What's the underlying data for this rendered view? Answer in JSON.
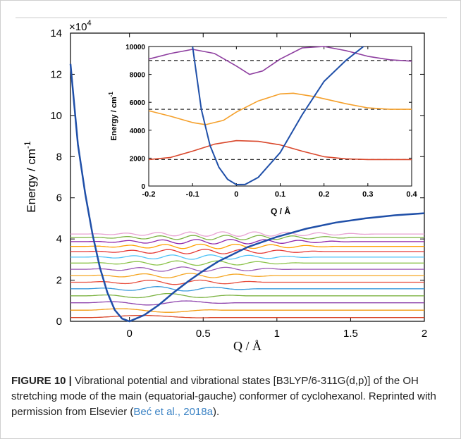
{
  "chart_data": [
    {
      "type": "line",
      "ylabel": "Energy / cm",
      "ylabel_sup": "-1",
      "xlabel": "Q / Å",
      "y_multiplier": "×10",
      "y_multiplier_exp": "4",
      "xlim": [
        -0.4,
        2.0
      ],
      "ylim": [
        0,
        14
      ],
      "x_ticks": [
        0,
        0.5,
        1,
        1.5,
        2
      ],
      "x_tick_labels": [
        "0",
        "0.5",
        "1",
        "1.5",
        "2"
      ],
      "y_ticks": [
        0,
        2,
        4,
        6,
        8,
        10,
        12,
        14
      ],
      "y_tick_labels": [
        "0",
        "2",
        "4",
        "6",
        "8",
        "10",
        "12",
        "14"
      ],
      "potential_points": [
        [
          -0.4,
          12.5
        ],
        [
          -0.35,
          8.6
        ],
        [
          -0.3,
          6.2
        ],
        [
          -0.25,
          4.2
        ],
        [
          -0.2,
          2.6
        ],
        [
          -0.15,
          1.4
        ],
        [
          -0.1,
          0.55
        ],
        [
          -0.05,
          0.13
        ],
        [
          0,
          0
        ],
        [
          0.1,
          0.3
        ],
        [
          0.2,
          0.8
        ],
        [
          0.3,
          1.4
        ],
        [
          0.4,
          1.95
        ],
        [
          0.5,
          2.45
        ],
        [
          0.6,
          2.9
        ],
        [
          0.8,
          3.6
        ],
        [
          1.0,
          4.1
        ],
        [
          1.2,
          4.5
        ],
        [
          1.4,
          4.8
        ],
        [
          1.6,
          5.0
        ],
        [
          1.8,
          5.15
        ],
        [
          2.0,
          5.25
        ]
      ],
      "vibrational_levels": [
        0.18,
        0.54,
        0.9,
        1.24,
        1.58,
        1.9,
        2.22,
        2.53,
        2.83,
        3.12,
        3.39,
        3.64,
        3.87,
        4.07,
        4.24
      ],
      "level_colors": [
        "#d9472b",
        "#f39c12",
        "#8e44ad",
        "#7cb342",
        "#3498db",
        "#e74c3c",
        "#f5a623",
        "#9b59b6",
        "#8bc34a",
        "#4fc3f7",
        "#e53935",
        "#ffa000",
        "#8e24aa",
        "#7cb342",
        "#e8a2d2"
      ],
      "potential_color": "#1f4fa8"
    },
    {
      "type": "line",
      "ylabel": "Energy / cm",
      "ylabel_sup": "-1",
      "xlabel": "Q / Å",
      "xlim": [
        -0.2,
        0.4
      ],
      "ylim": [
        0,
        10000
      ],
      "x_ticks": [
        -0.2,
        -0.1,
        0,
        0.1,
        0.2,
        0.3,
        0.4
      ],
      "x_tick_labels": [
        "-0.2",
        "-0.1",
        "0",
        "0.1",
        "0.2",
        "0.3",
        "0.4"
      ],
      "y_ticks": [
        0,
        2000,
        4000,
        6000,
        8000,
        10000
      ],
      "y_tick_labels": [
        "0",
        "2000",
        "4000",
        "6000",
        "8000",
        "10000"
      ],
      "potential_points": [
        [
          -0.1,
          10500
        ],
        [
          -0.08,
          5500
        ],
        [
          -0.06,
          2900
        ],
        [
          -0.04,
          1350
        ],
        [
          -0.02,
          480
        ],
        [
          0,
          100
        ],
        [
          0.02,
          110
        ],
        [
          0.05,
          620
        ],
        [
          0.1,
          2400
        ],
        [
          0.15,
          5100
        ],
        [
          0.2,
          7500
        ],
        [
          0.25,
          9000
        ],
        [
          0.29,
          10500
        ]
      ],
      "levels": [
        1900,
        5500,
        9000
      ],
      "wavefunctions": [
        {
          "level": 1900,
          "color": "#d9472b",
          "points": [
            [
              -0.2,
              1900
            ],
            [
              -0.15,
              2050
            ],
            [
              -0.1,
              2500
            ],
            [
              -0.05,
              3000
            ],
            [
              0,
              3250
            ],
            [
              0.05,
              3200
            ],
            [
              0.1,
              2950
            ],
            [
              0.15,
              2500
            ],
            [
              0.2,
              2100
            ],
            [
              0.25,
              1950
            ],
            [
              0.3,
              1900
            ],
            [
              0.4,
              1900
            ]
          ]
        },
        {
          "level": 5500,
          "color": "#f5a02b",
          "points": [
            [
              -0.2,
              5400
            ],
            [
              -0.15,
              5000
            ],
            [
              -0.1,
              4550
            ],
            [
              -0.07,
              4400
            ],
            [
              -0.03,
              4700
            ],
            [
              0,
              5300
            ],
            [
              0.05,
              6100
            ],
            [
              0.1,
              6600
            ],
            [
              0.13,
              6650
            ],
            [
              0.18,
              6400
            ],
            [
              0.25,
              5900
            ],
            [
              0.3,
              5600
            ],
            [
              0.35,
              5500
            ],
            [
              0.4,
              5500
            ]
          ]
        },
        {
          "level": 9000,
          "color": "#8e3fa0",
          "points": [
            [
              -0.2,
              9100
            ],
            [
              -0.15,
              9500
            ],
            [
              -0.1,
              9800
            ],
            [
              -0.05,
              9500
            ],
            [
              0,
              8600
            ],
            [
              0.03,
              8000
            ],
            [
              0.06,
              8250
            ],
            [
              0.1,
              9100
            ],
            [
              0.15,
              9900
            ],
            [
              0.2,
              10000
            ],
            [
              0.25,
              9700
            ],
            [
              0.3,
              9300
            ],
            [
              0.35,
              9050
            ],
            [
              0.4,
              8950
            ]
          ]
        }
      ],
      "potential_color": "#1f4fa8",
      "level_line_color": "#333333"
    }
  ],
  "caption": {
    "label": "FIGURE 10 |",
    "text": " Vibrational potential and vibrational states [B3LYP/6-311G(d,p)] of the OH stretching mode of the main (equatorial-gauche) conformer of cyclohexanol. Reprinted with permission from Elsevier (",
    "citation": "Beć et al., 2018a",
    "tail": ")."
  }
}
